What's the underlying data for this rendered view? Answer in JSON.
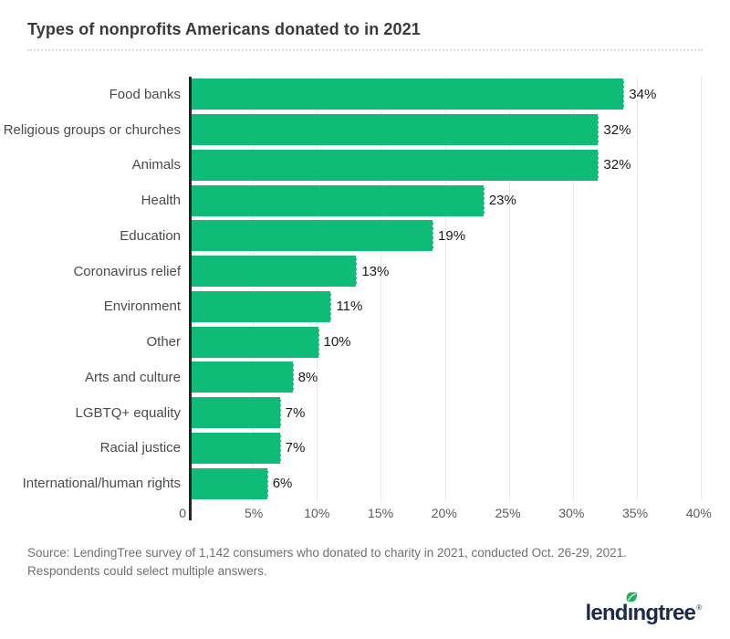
{
  "title": "Types of nonprofits Americans donated to in 2021",
  "source": "Source: LendingTree survey of 1,142 consumers who donated to charity in 2021, conducted Oct. 26-29, 2021. Respondents could select multiple answers.",
  "logo": {
    "pre": "lend",
    "i_dotless": "ı",
    "post": "ngtree",
    "trademark": "®",
    "icon": "leaf-icon"
  },
  "colors": {
    "bar_green": "#0fbc77",
    "leaf_green": "#1cb35c",
    "logo_navy": "#1b2b4a",
    "axis_dark": "#262626",
    "gridline": "#e7e7e7",
    "title_text": "#3a3a3a",
    "category_text": "#4a4a4a",
    "value_text": "#1a1a1a",
    "tick_text": "#5a5a5a",
    "source_text": "#6f6f6f"
  },
  "chart_data": {
    "type": "bar",
    "orientation": "horizontal",
    "title": "Types of nonprofits Americans donated to in 2021",
    "categories": [
      "Food banks",
      "Religious groups or churches",
      "Animals",
      "Health",
      "Education",
      "Coronavirus relief",
      "Environment",
      "Other",
      "Arts and culture",
      "LGBTQ+ equality",
      "Racial justice",
      "International/human rights"
    ],
    "values": [
      34,
      32,
      32,
      23,
      19,
      13,
      11,
      10,
      8,
      7,
      7,
      6
    ],
    "value_labels": [
      "34%",
      "32%",
      "32%",
      "23%",
      "19%",
      "13%",
      "11%",
      "10%",
      "8%",
      "7%",
      "7%",
      "6%"
    ],
    "xlabel": "",
    "ylabel": "",
    "xlim": [
      0,
      40
    ],
    "xticks": [
      "0",
      "5%",
      "10%",
      "15%",
      "20%",
      "25%",
      "30%",
      "35%",
      "40%"
    ],
    "grid": "vertical gridlines every 5%",
    "legend": "none"
  }
}
